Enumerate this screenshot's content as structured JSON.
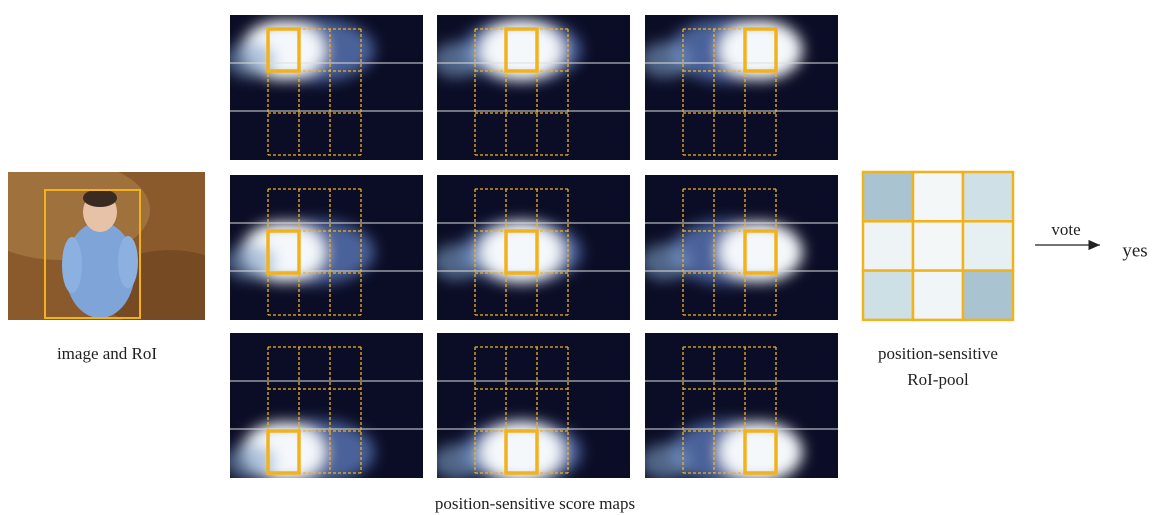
{
  "image_label": "image and RoI",
  "score_maps_label": "position-sensitive score maps",
  "pool_label": [
    "position-sensitive",
    "RoI-pool"
  ],
  "vote_label": "vote",
  "output_label": "yes"
}
